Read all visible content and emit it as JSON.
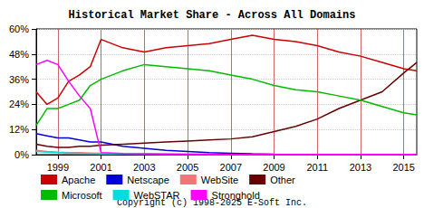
{
  "chart_data": {
    "type": "line",
    "title": "Historical Market Share - Across All Domains",
    "annotations": [
      "Copyright (c) 1998-2025 E-Soft Inc."
    ],
    "x": [
      1998,
      1998.5,
      1999,
      1999.5,
      2000,
      2000.5,
      2001,
      2002,
      2003,
      2004,
      2005,
      2006,
      2007,
      2008,
      2009,
      2010,
      2011,
      2012,
      2013,
      2014,
      2015,
      2015.6
    ],
    "xlim": [
      1998,
      2015.6
    ],
    "xticks": [
      1999,
      2001,
      2003,
      2005,
      2007,
      2009,
      2011,
      2013,
      2015
    ],
    "ylim": [
      0,
      60
    ],
    "yticks": [
      {
        "value": 0,
        "label": "0%"
      },
      {
        "value": 12,
        "label": "12%"
      },
      {
        "value": 24,
        "label": "24%"
      },
      {
        "value": 36,
        "label": "36%"
      },
      {
        "value": 48,
        "label": "48%"
      },
      {
        "value": 60,
        "label": "60%"
      }
    ],
    "grid": true,
    "legend": "bottom",
    "series": [
      {
        "name": "Apache",
        "color": "#cc0000",
        "values": [
          30,
          24,
          27,
          35,
          38,
          42,
          55,
          51,
          49,
          51,
          52,
          53,
          55,
          57,
          55,
          54,
          52,
          49,
          47,
          44,
          41,
          40
        ]
      },
      {
        "name": "Netscape",
        "color": "#0000dd",
        "values": [
          10,
          9,
          8,
          8,
          7,
          6,
          6,
          4,
          3,
          2,
          1.5,
          1,
          0.7,
          0.4,
          0.2,
          0.1,
          0.1,
          0.1,
          0.1,
          0.1,
          0.1,
          0.1
        ]
      },
      {
        "name": "WebSite",
        "color": "#ee7777",
        "values": [
          2,
          1.5,
          1.2,
          1,
          1,
          0.8,
          0.6,
          0.4,
          0.3,
          0.2,
          0.2,
          0.1,
          0.1,
          0.1,
          0.1,
          0.1,
          0.1,
          0.1,
          0.1,
          0.1,
          0.1,
          0.1
        ]
      },
      {
        "name": "Other",
        "color": "#660000",
        "values": [
          5,
          4,
          3.5,
          3.5,
          4,
          4,
          4.5,
          5,
          5.5,
          6,
          6.5,
          7,
          7.5,
          8.5,
          11,
          13.5,
          17,
          22,
          26,
          30,
          39,
          44
        ]
      },
      {
        "name": "Microsoft",
        "color": "#00bb00",
        "values": [
          14,
          22,
          22,
          24,
          26,
          33,
          36,
          40,
          43,
          42,
          41,
          40,
          38,
          36,
          33,
          31,
          30,
          28,
          26,
          23,
          20,
          19
        ]
      },
      {
        "name": "WebSTAR",
        "color": "#00dddd",
        "values": [
          1.5,
          1.2,
          1,
          0.8,
          0.6,
          0.5,
          0.4,
          0.3,
          0.2,
          0.1,
          0.1,
          0.1,
          0.1,
          0.1,
          0.1,
          0.1,
          0.1,
          0.1,
          0.1,
          0.1,
          0.1,
          0.1
        ]
      },
      {
        "name": "Stronghold",
        "color": "#ff00ff",
        "values": [
          43,
          45,
          43,
          35,
          28,
          22,
          1,
          0.5,
          0.4,
          0.3,
          0.2,
          0.2,
          0.1,
          0.1,
          0.1,
          0.1,
          0.1,
          0.1,
          0.1,
          0.1,
          0.1,
          0.1
        ]
      }
    ]
  }
}
